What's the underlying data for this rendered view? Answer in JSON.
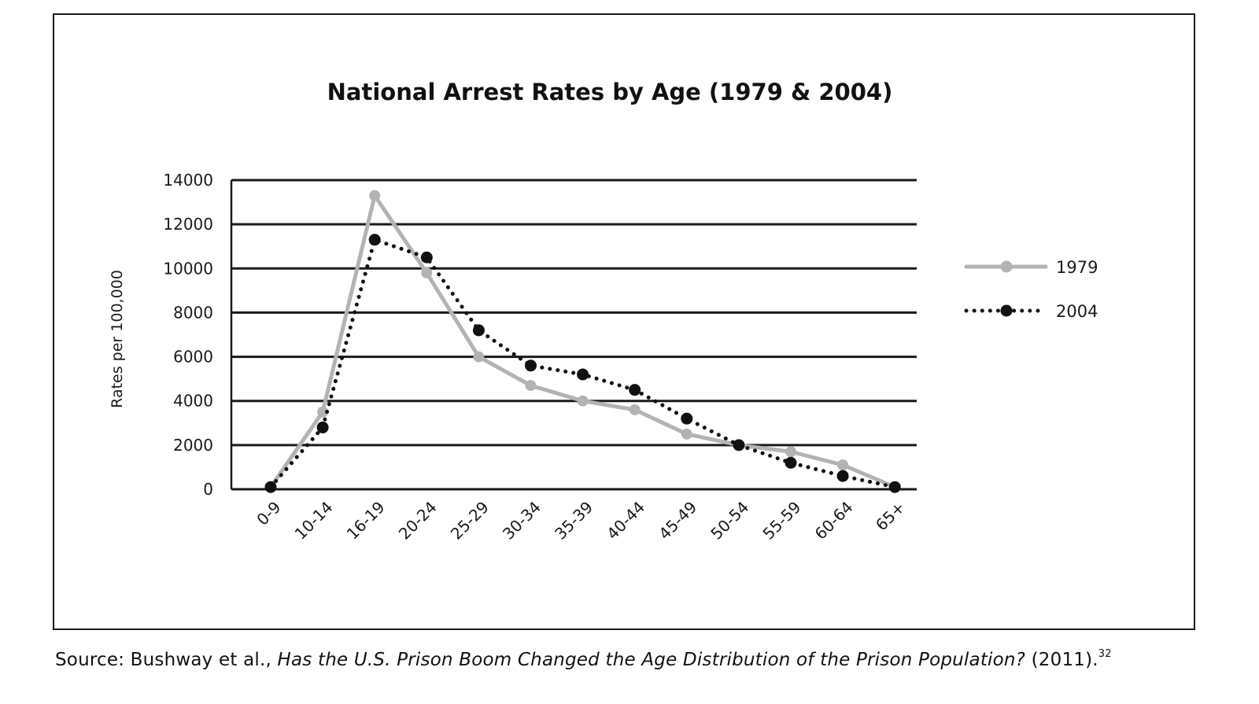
{
  "chart_data": {
    "type": "line",
    "title": "National Arrest Rates by Age (1979 & 2004)",
    "xlabel": "",
    "ylabel": "Rates per 100,000",
    "categories": [
      "0-9",
      "10-14",
      "16-19",
      "20-24",
      "25-29",
      "30-34",
      "35-39",
      "40-44",
      "45-49",
      "50-54",
      "55-59",
      "60-64",
      "65+"
    ],
    "ylim": [
      0,
      14000
    ],
    "yticks": [
      0,
      2000,
      4000,
      6000,
      8000,
      10000,
      12000,
      14000
    ],
    "grid": true,
    "legend_position": "right",
    "series": [
      {
        "name": "1979",
        "values": [
          100,
          3500,
          13300,
          9800,
          6000,
          4700,
          4000,
          3600,
          2500,
          2000,
          1700,
          1100,
          100
        ],
        "color": "#b3b3b3",
        "style": "solid"
      },
      {
        "name": "2004",
        "values": [
          100,
          2800,
          11300,
          10500,
          7200,
          5600,
          5200,
          4500,
          3200,
          2000,
          1200,
          600,
          100
        ],
        "color": "#111111",
        "style": "dotted"
      }
    ]
  },
  "source": {
    "prefix": "Source: Bushway et al., ",
    "title": "Has the U.S. Prison Boom Changed the Age Distribution of the Prison Population?",
    "suffix": " (2011).",
    "footnote": "32"
  }
}
